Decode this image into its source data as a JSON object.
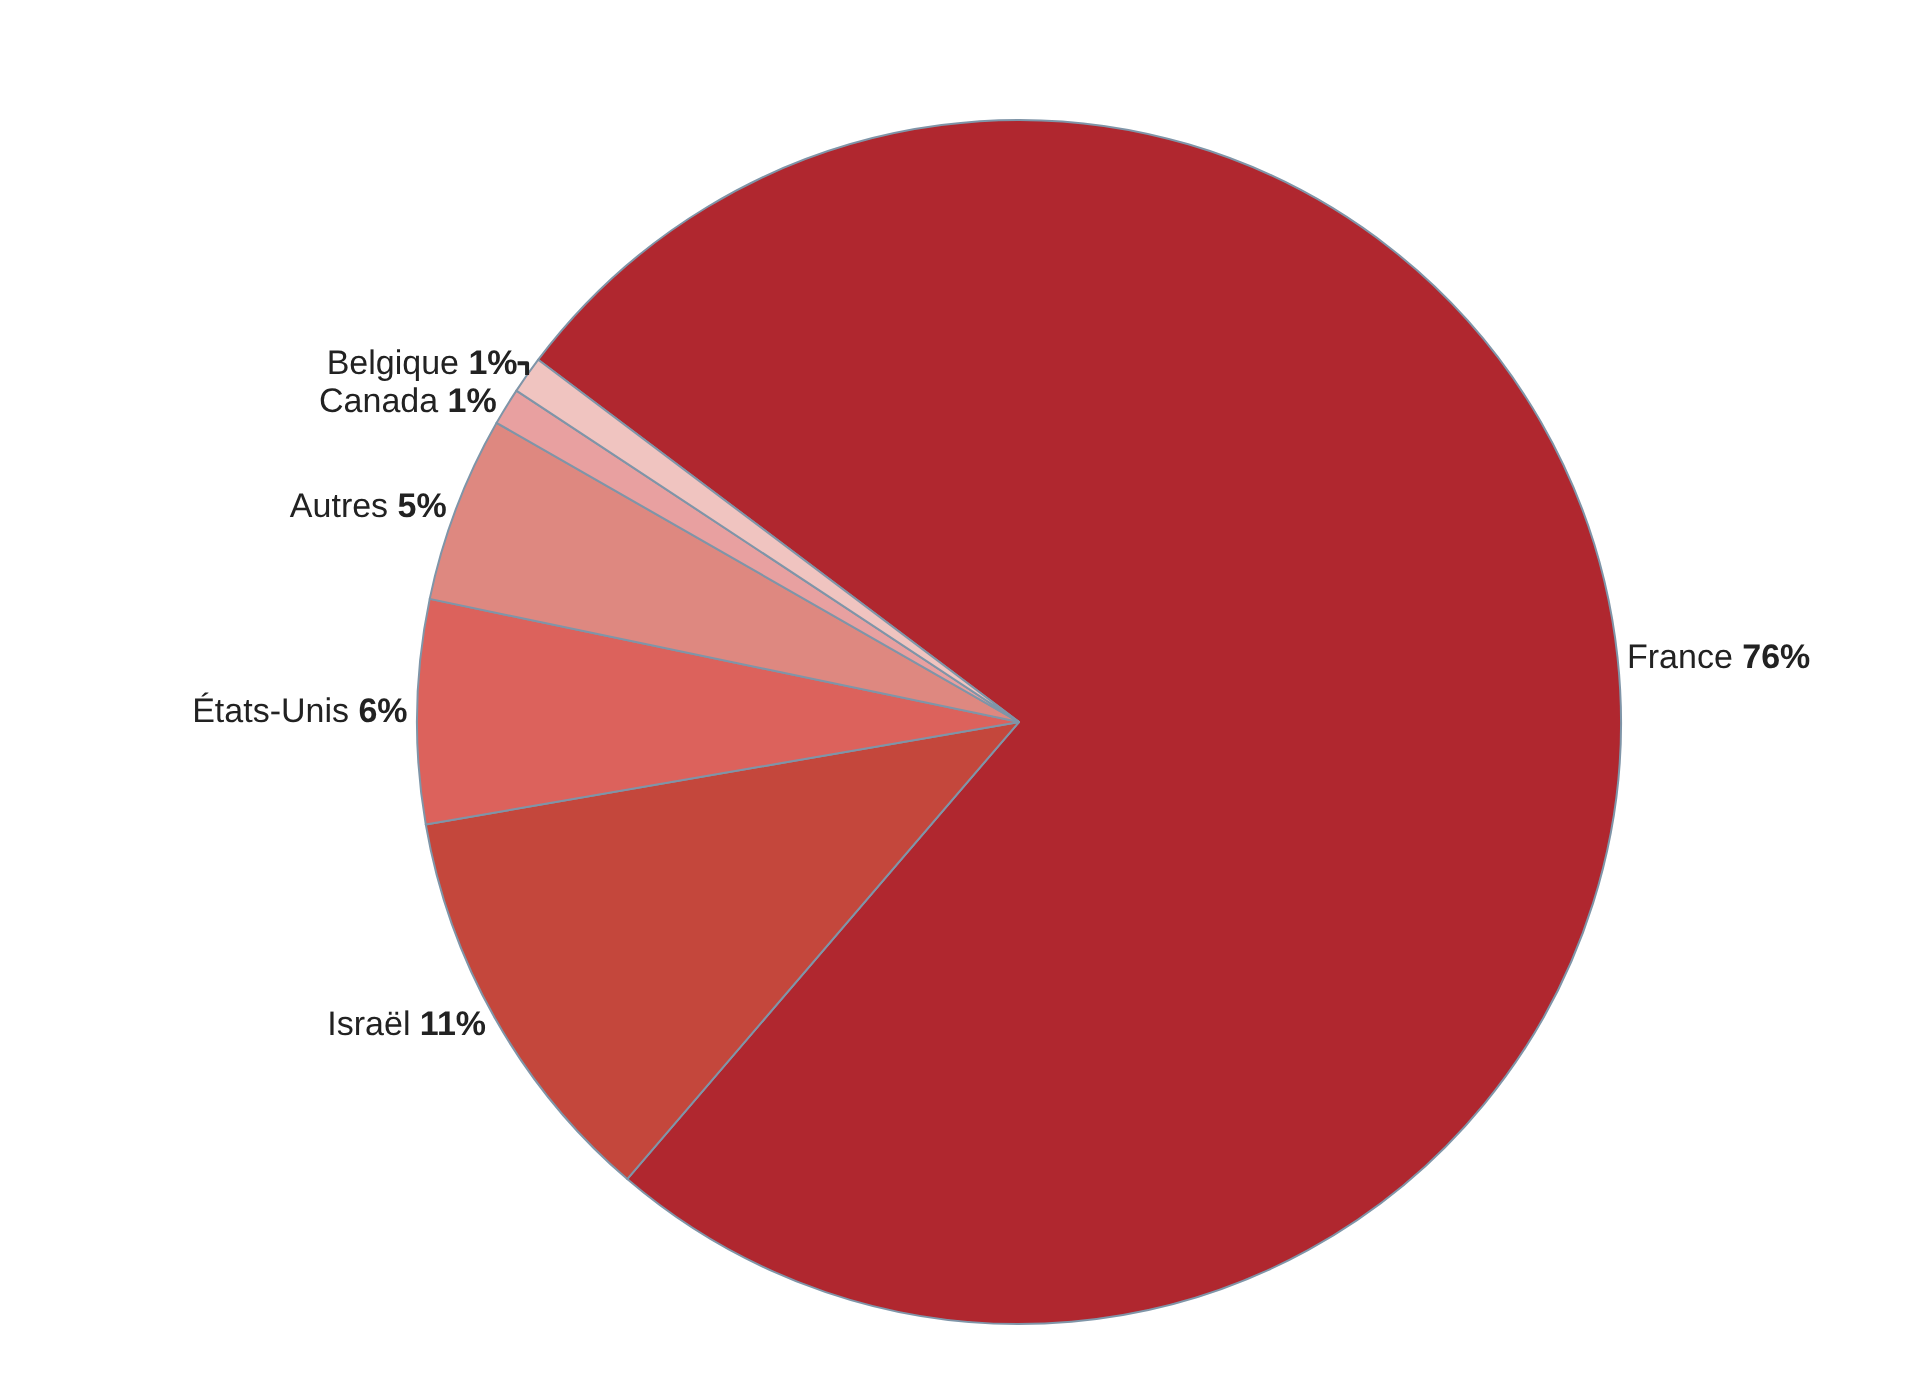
{
  "chart_data": {
    "type": "pie",
    "categories": [
      "France",
      "Israël",
      "États-Unis",
      "Autres",
      "Canada",
      "Belgique"
    ],
    "values": [
      76,
      11,
      6,
      5,
      1,
      1
    ],
    "value_labels": [
      "76%",
      "11%",
      "6%",
      "5%",
      "1%",
      "1%"
    ],
    "colors": [
      "#b0272f",
      "#c4473c",
      "#dc625c",
      "#de8880",
      "#e8a0a0",
      "#f0c4c0"
    ]
  }
}
